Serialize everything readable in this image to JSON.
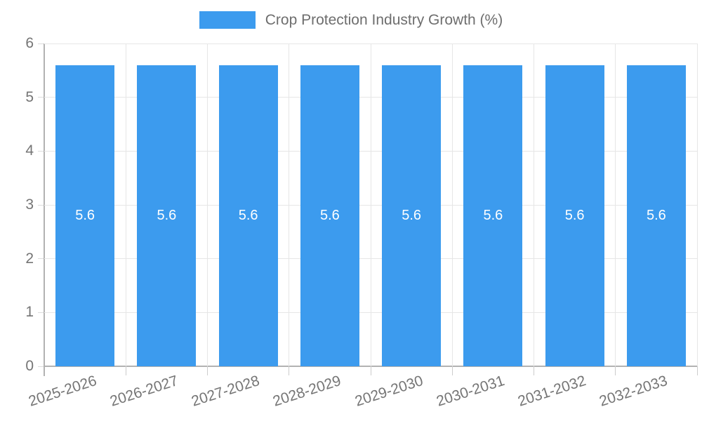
{
  "chart_data": {
    "type": "bar",
    "title": "Crop Protection Industry Growth (%)",
    "categories": [
      "2025-2026",
      "2026-2027",
      "2027-2028",
      "2028-2029",
      "2029-2030",
      "2030-2031",
      "2031-2032",
      "2032-2033"
    ],
    "values": [
      5.6,
      5.6,
      5.6,
      5.6,
      5.6,
      5.6,
      5.6,
      5.6
    ],
    "bar_labels": [
      "5.6",
      "5.6",
      "5.6",
      "5.6",
      "5.6",
      "5.6",
      "5.6",
      "5.6"
    ],
    "xlabel": "",
    "ylabel": "",
    "ylim": [
      0,
      6
    ],
    "yticks": [
      "0",
      "1",
      "2",
      "3",
      "4",
      "5",
      "6"
    ],
    "grid": true,
    "legend_position": "top",
    "colors": {
      "bar": "#3c9bee",
      "bar_label": "#ffffff",
      "grid": "#e6e6e6",
      "axis": "#b2b2b2",
      "tick": "#cccccc",
      "text": "#757575",
      "legend_text": "#6e6e6e",
      "background": "#ffffff"
    }
  }
}
